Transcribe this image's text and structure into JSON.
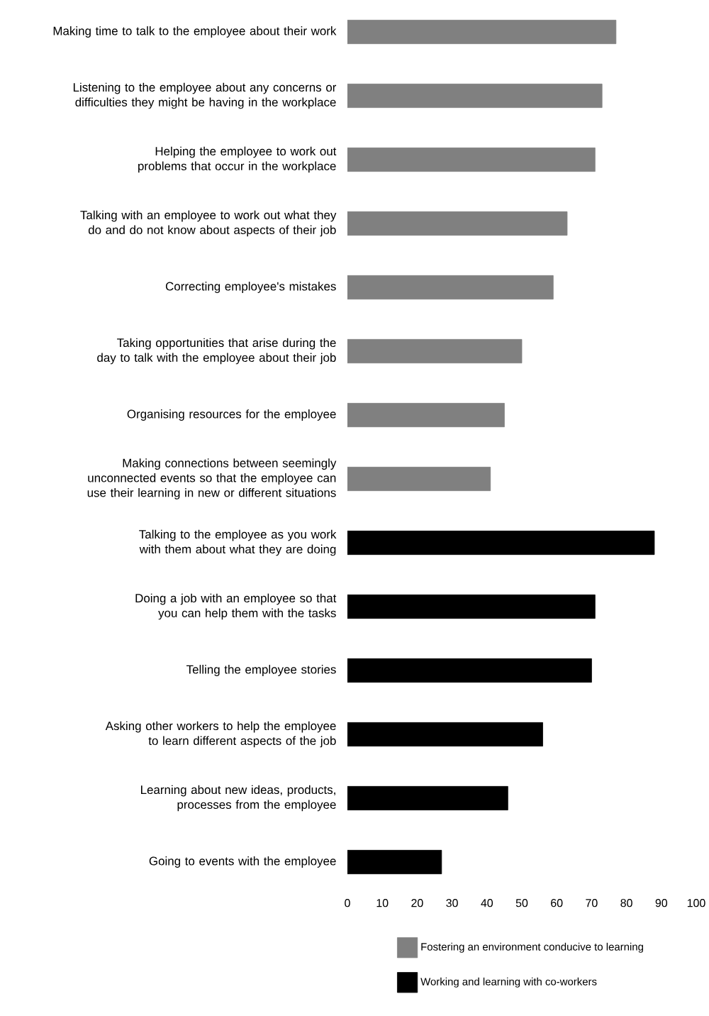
{
  "chart_data": {
    "type": "bar",
    "orientation": "horizontal",
    "categories": [
      "Making time to talk to the employee about their work",
      "Listening to the employee about any concerns or difficulties they might be having in the workplace",
      "Helping the employee to work out problems that occur in the workplace",
      "Talking with an employee to work out what they do and do not know about aspects of their job",
      "Correcting employee's mistakes",
      "Taking opportunities that arise during the day to talk with the employee about their job",
      "Organising resources for the employee",
      "Making connections between seemingly unconnected events so that the employee can use their learning in new or different situations",
      "Talking to the employee as you work with them about what they are doing",
      "Doing a job with an employee so that you can help them with the tasks",
      "Telling the employee stories",
      "Asking other workers to help the employee to learn different aspects of the job",
      "Learning about new ideas, products, processes from the employee",
      "Going to events with the employee"
    ],
    "series": [
      {
        "name": "Fostering an environment conducive to learning",
        "color": "#808080",
        "values": [
          77,
          73,
          71,
          63,
          59,
          50,
          45,
          41,
          null,
          null,
          null,
          null,
          null,
          null
        ]
      },
      {
        "name": "Working and learning with co-workers",
        "color": "#000000",
        "values": [
          null,
          null,
          null,
          null,
          null,
          null,
          null,
          null,
          88,
          71,
          70,
          56,
          46,
          27
        ]
      }
    ],
    "xlim": [
      0,
      100
    ],
    "xticks": [
      0,
      10,
      20,
      30,
      40,
      50,
      60,
      70,
      80,
      90,
      100
    ],
    "legend": "bottom"
  }
}
